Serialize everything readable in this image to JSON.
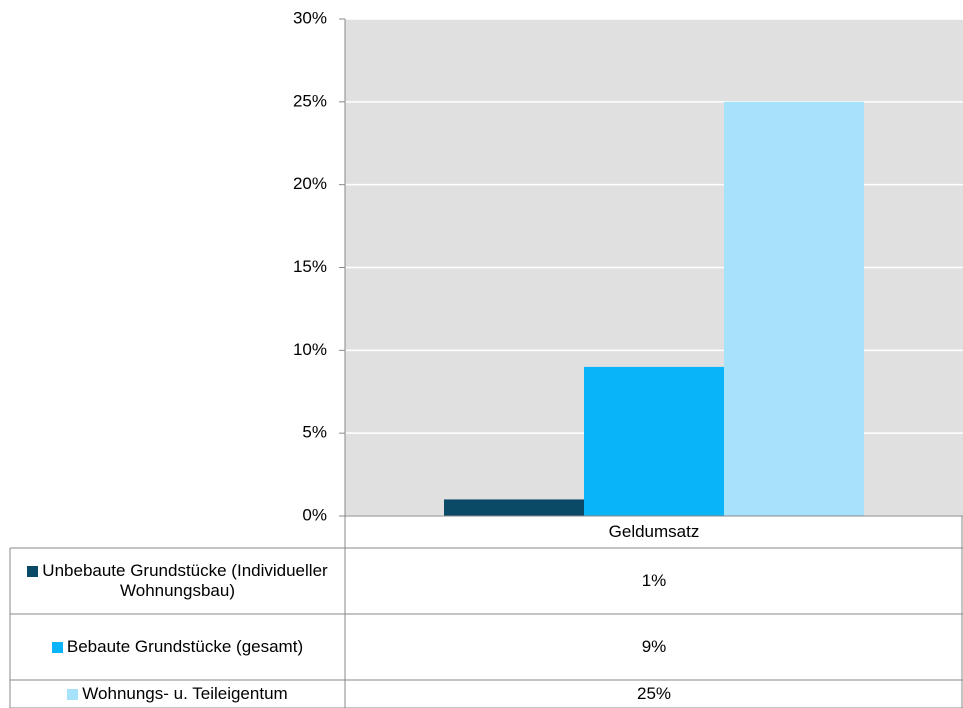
{
  "chart_data": {
    "type": "bar",
    "categories": [
      "Geldumsatz"
    ],
    "series": [
      {
        "name": "Unbebaute Grundstücke (Individueller Wohnungsbau)",
        "color": "#0b4a66",
        "values": [
          1
        ],
        "value_labels": [
          "1%"
        ]
      },
      {
        "name": "Bebaute Grundstücke (gesamt)",
        "color": "#0ab4f8",
        "values": [
          9
        ],
        "value_labels": [
          "9%"
        ]
      },
      {
        "name": "Wohnungs- u. Teileigentum",
        "color": "#a6e3fb",
        "values": [
          25
        ],
        "value_labels": [
          "25%"
        ]
      }
    ],
    "ylim": [
      0,
      30
    ],
    "yticks": [
      {
        "value": 0,
        "label": "0%"
      },
      {
        "value": 5,
        "label": "5%"
      },
      {
        "value": 10,
        "label": "10%"
      },
      {
        "value": 15,
        "label": "15%"
      },
      {
        "value": 20,
        "label": "20%"
      },
      {
        "value": 25,
        "label": "25%"
      },
      {
        "value": 30,
        "label": "30%"
      }
    ],
    "grid": true,
    "legend": "table"
  }
}
